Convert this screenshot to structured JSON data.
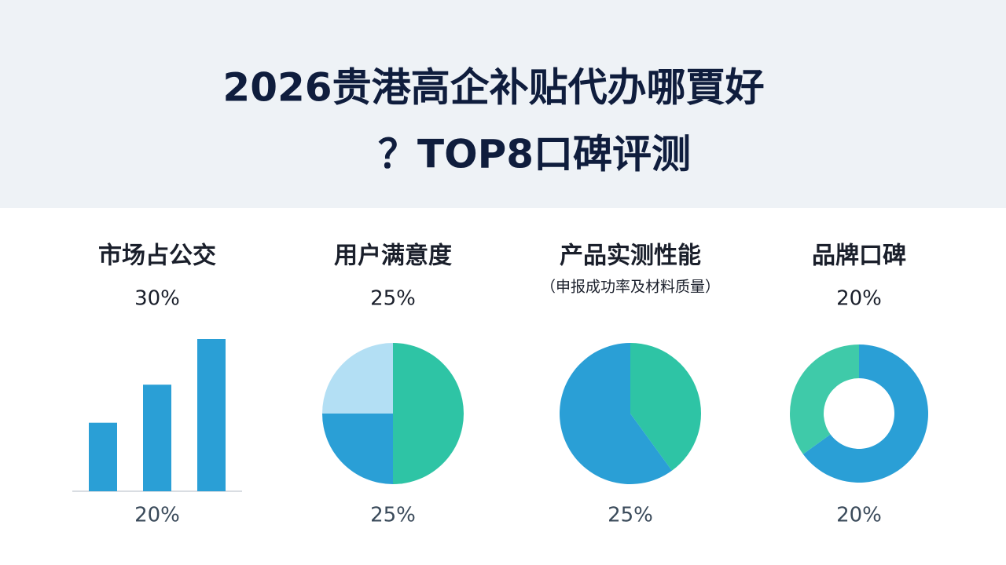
{
  "header": {
    "title_lines": [
      "2026贵港高企补贴代办哪賈好",
      "？TOP8口碑评测"
    ]
  },
  "chart_data": [
    {
      "type": "bar",
      "title": "市场占公交",
      "subtitle": "30%",
      "footer": "20%",
      "values": [
        45,
        70,
        100
      ],
      "ylim": [
        0,
        100
      ],
      "color": "#2a9fd6"
    },
    {
      "type": "pie",
      "title": "用户满意度",
      "subtitle": "25%",
      "footer": "25%",
      "values": [
        50,
        25,
        25
      ],
      "colors": [
        "#2ec4a5",
        "#2a9fd6",
        "#b3dff4"
      ]
    },
    {
      "type": "pie",
      "title": "产品实测性能",
      "note": "（申报成功率及材料质量）",
      "footer": "25%",
      "values": [
        40,
        60
      ],
      "colors": [
        "#2ec4a5",
        "#2a9fd6"
      ]
    },
    {
      "type": "donut",
      "title": "品牌口碑",
      "subtitle": "20%",
      "footer": "20%",
      "values": [
        65,
        35
      ],
      "colors": [
        "#2a9fd6",
        "#3fcaa9"
      ]
    }
  ]
}
